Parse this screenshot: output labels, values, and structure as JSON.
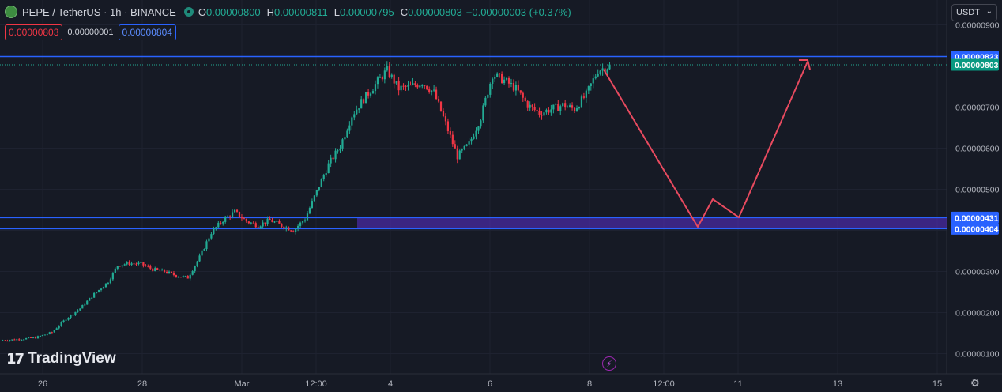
{
  "header": {
    "symbol": "PEPE / TetherUS · 1h · BINANCE",
    "o_label": "O",
    "o_value": "0.00000800",
    "h_label": "H",
    "h_value": "0.00000811",
    "l_label": "L",
    "l_value": "0.00000795",
    "c_label": "C",
    "c_value": "0.00000803",
    "change": "+0.00000003 (+0.37%)"
  },
  "pricebar": {
    "sell": "0.00000803",
    "spread": "0.00000001",
    "buy": "0.00000804"
  },
  "currency": {
    "label": "USDT"
  },
  "brand": {
    "name": "TradingView"
  },
  "colors": {
    "up": "#22ab94",
    "down": "#f23645",
    "line": "#2962ff",
    "zone": "#5b2fd0",
    "arrow": "#e84a5f"
  },
  "chart_data": {
    "type": "candlestick",
    "y_ticks": [
      "0.00000900",
      "0.00000700",
      "0.00000600",
      "0.00000500",
      "0.00000300",
      "0.00000200",
      "0.00000100"
    ],
    "x_ticks": [
      "26",
      "28",
      "Mar",
      "12:00",
      "4",
      "6",
      "8",
      "12:00",
      "11",
      "13",
      "15"
    ],
    "levels": [
      {
        "value": "0.00000823",
        "style": "blue"
      },
      {
        "value": "0.00000803",
        "style": "green"
      },
      {
        "value": "0.00000431",
        "style": "blue"
      },
      {
        "value": "0.00000404",
        "style": "blue"
      }
    ],
    "price_path": [
      [
        0,
        1.32e-06
      ],
      [
        8,
        1.35e-06
      ],
      [
        15,
        1.39e-06
      ],
      [
        22,
        1.52e-06
      ],
      [
        28,
        1.85e-06
      ],
      [
        34,
        2.1e-06
      ],
      [
        40,
        2.45e-06
      ],
      [
        46,
        2.75e-06
      ],
      [
        50,
        3.15e-06
      ],
      [
        55,
        3.2e-06
      ],
      [
        60,
        3.18e-06
      ],
      [
        65,
        3.05e-06
      ],
      [
        70,
        3e-06
      ],
      [
        75,
        2.9e-06
      ],
      [
        80,
        2.85e-06
      ],
      [
        85,
        3.35e-06
      ],
      [
        90,
        3.95e-06
      ],
      [
        95,
        4.25e-06
      ],
      [
        100,
        4.45e-06
      ],
      [
        105,
        4.22e-06
      ],
      [
        110,
        4.12e-06
      ],
      [
        115,
        4.25e-06
      ],
      [
        120,
        4.12e-06
      ],
      [
        125,
        4e-06
      ],
      [
        130,
        4.28e-06
      ],
      [
        135,
        4.95e-06
      ],
      [
        140,
        5.6e-06
      ],
      [
        145,
        6.05e-06
      ],
      [
        150,
        6.8e-06
      ],
      [
        155,
        7.2e-06
      ],
      [
        160,
        7.55e-06
      ],
      [
        165,
        7.9e-06
      ],
      [
        170,
        7.45e-06
      ],
      [
        175,
        7.5e-06
      ],
      [
        180,
        7.6e-06
      ],
      [
        185,
        7.35e-06
      ],
      [
        190,
        6.6e-06
      ],
      [
        195,
        5.8e-06
      ],
      [
        200,
        6.1e-06
      ],
      [
        205,
        6.75e-06
      ],
      [
        210,
        7.8e-06
      ],
      [
        215,
        7.65e-06
      ],
      [
        220,
        7.45e-06
      ],
      [
        225,
        7.05e-06
      ],
      [
        230,
        6.85e-06
      ],
      [
        235,
        6.95e-06
      ],
      [
        240,
        7.05e-06
      ],
      [
        245,
        6.95e-06
      ],
      [
        250,
        7.3e-06
      ],
      [
        255,
        7.9e-06
      ],
      [
        260,
        8e-06
      ]
    ],
    "projection": [
      {
        "x": "8 (now)",
        "y": 8.03e-06
      },
      {
        "x": "12:00 (10th)",
        "y": 4.1e-06
      },
      {
        "x": "12:00 (10th) +",
        "y": 4.74e-06
      },
      {
        "x": "11",
        "y": 4.31e-06
      },
      {
        "x": "12",
        "y": 8.1e-06
      }
    ]
  }
}
